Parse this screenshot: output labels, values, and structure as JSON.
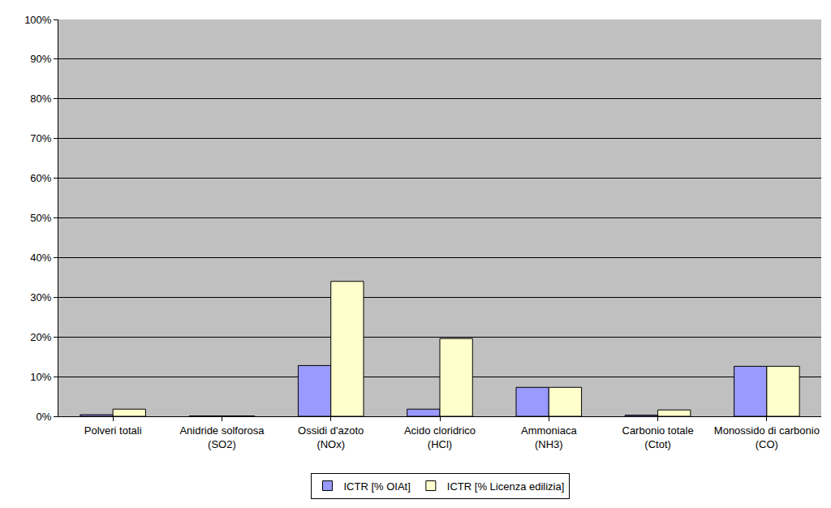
{
  "chart_data": {
    "type": "bar",
    "categories": [
      "Polveri totali",
      "Anidride solforosa (SO2)",
      "Ossidi d'azoto (NOx)",
      "Acido cloridrico (HCl)",
      "Ammoniaca (NH3)",
      "Carbonio totale (Ctot)",
      "Monossido di carbonio (CO)"
    ],
    "series": [
      {
        "name": "ICTR [% OIAt]",
        "color": "#9999ff",
        "values": [
          0.4,
          0.1,
          12.8,
          1.8,
          7.3,
          0.3,
          12.6
        ]
      },
      {
        "name": "ICTR [% Licenza edilizia]",
        "color": "#ffffcc",
        "values": [
          1.8,
          0.1,
          34.0,
          19.6,
          7.3,
          1.6,
          12.6
        ]
      }
    ],
    "ylim": [
      0,
      100
    ],
    "yticks": [
      {
        "value": 0,
        "label": "0%"
      },
      {
        "value": 10,
        "label": "10%"
      },
      {
        "value": 20,
        "label": "20%"
      },
      {
        "value": 30,
        "label": "30%"
      },
      {
        "value": 40,
        "label": "40%"
      },
      {
        "value": 50,
        "label": "50%"
      },
      {
        "value": 60,
        "label": "60%"
      },
      {
        "value": 70,
        "label": "70%"
      },
      {
        "value": 80,
        "label": "80%"
      },
      {
        "value": 90,
        "label": "90%"
      },
      {
        "value": 100,
        "label": "100%"
      }
    ],
    "grid": true,
    "legend": "bottom"
  }
}
